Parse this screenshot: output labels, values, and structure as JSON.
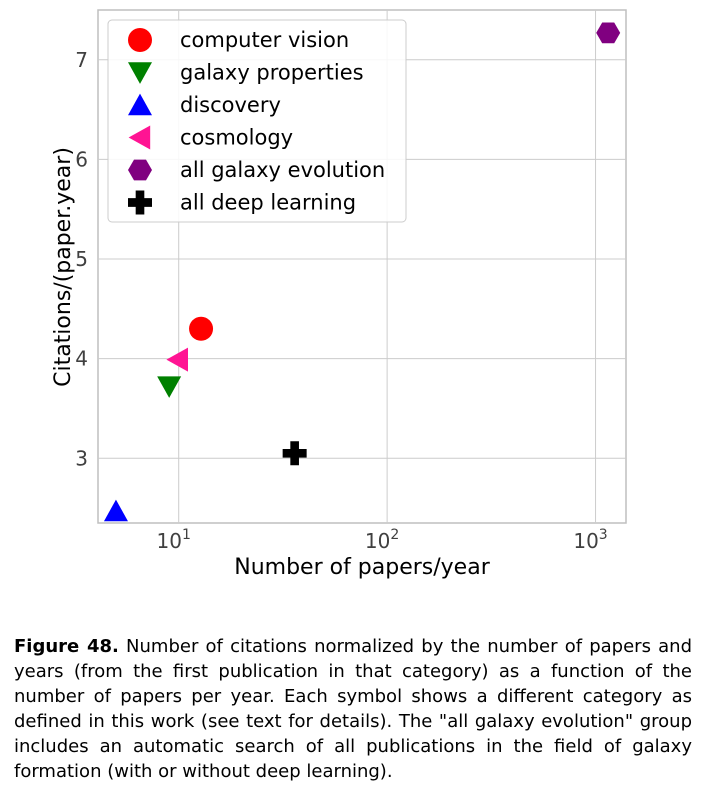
{
  "chart_data": {
    "type": "scatter",
    "xlabel": "Number of papers/year",
    "ylabel": "Citations/(paper.year)",
    "x_scale": "log",
    "xlim": [
      4.1,
      1400
    ],
    "ylim": [
      2.35,
      7.5
    ],
    "x_ticks": [
      10,
      100,
      1000
    ],
    "x_tick_labels": [
      {
        "base": "10",
        "exp": "1"
      },
      {
        "base": "10",
        "exp": "2"
      },
      {
        "base": "10",
        "exp": "3"
      }
    ],
    "y_ticks": [
      3,
      4,
      5,
      6,
      7
    ],
    "y_tick_labels": [
      "3",
      "4",
      "5",
      "6",
      "7"
    ],
    "grid": true,
    "legend_position": "upper-left",
    "series": [
      {
        "name": "computer vision",
        "marker": "circle",
        "color": "#ff0000",
        "x": 12.8,
        "y": 4.3
      },
      {
        "name": "galaxy properties",
        "marker": "triangle-down",
        "color": "#008000",
        "x": 9.0,
        "y": 3.72
      },
      {
        "name": "discovery",
        "marker": "triangle-up",
        "color": "#0000ff",
        "x": 5.0,
        "y": 2.47
      },
      {
        "name": "cosmology",
        "marker": "triangle-left",
        "color": "#ff1493",
        "x": 9.9,
        "y": 3.99
      },
      {
        "name": "all galaxy evolution",
        "marker": "hexagon",
        "color": "#800080",
        "x": 1150,
        "y": 7.27
      },
      {
        "name": "all deep learning",
        "marker": "plus",
        "color": "#000000",
        "x": 36,
        "y": 3.05
      }
    ]
  },
  "caption": {
    "label": "Figure 48.",
    "text": " Number of citations normalized by the number of papers and years (from the first publication in that category) as a function of the number of papers per year. Each symbol shows a different category as defined in this work (see text for details). The \"all galaxy evolution\" group includes an automatic search of all publications in the field of galaxy formation (with or without deep learning)."
  }
}
